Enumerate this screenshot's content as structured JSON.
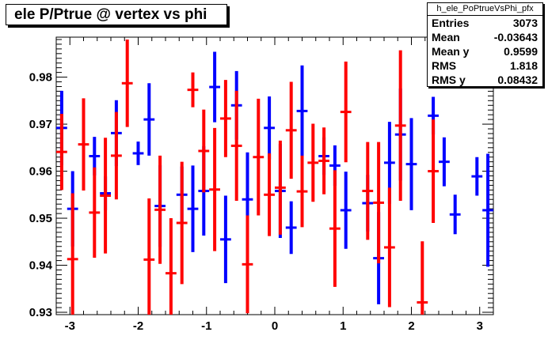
{
  "title": "ele P/Ptrue @ vertex vs phi",
  "stats": {
    "name": "h_ele_PoPtrueVsPhi_pfx",
    "rows": [
      {
        "label": "Entries",
        "value": "3073"
      },
      {
        "label": "Mean",
        "value": "-0.03643"
      },
      {
        "label": "Mean y",
        "value": "0.9599"
      },
      {
        "label": "RMS",
        "value": "1.818"
      },
      {
        "label": "RMS y",
        "value": "0.08432"
      }
    ]
  },
  "chart_data": {
    "type": "scatter",
    "title": "ele P/Ptrue @ vertex vs phi",
    "xlabel": "",
    "ylabel": "",
    "xlim": [
      -3.2,
      3.2
    ],
    "ylim": [
      0.9295,
      0.9885
    ],
    "x_ticks": [
      -3,
      -2,
      -1,
      0,
      1,
      2,
      3
    ],
    "y_ticks": [
      0.93,
      0.94,
      0.95,
      0.96,
      0.97,
      0.98
    ],
    "grid": false,
    "bin_half_width": 0.08,
    "series": [
      {
        "color": "#0000ff",
        "points": [
          {
            "x": -3.12,
            "y": 0.9692,
            "err": 0.0079
          },
          {
            "x": -2.96,
            "y": 0.952,
            "err": 0.008
          },
          {
            "x": -2.64,
            "y": 0.9632,
            "err": 0.0041
          },
          {
            "x": -2.48,
            "y": 0.9553,
            "err": 0.0036
          },
          {
            "x": -2.32,
            "y": 0.9681,
            "err": 0.007
          },
          {
            "x": -2.0,
            "y": 0.9638,
            "err": 0.0025
          },
          {
            "x": -1.84,
            "y": 0.971,
            "err": 0.0077
          },
          {
            "x": -1.68,
            "y": 0.9526,
            "err": 0.0087
          },
          {
            "x": -1.36,
            "y": 0.955,
            "err": 0.006
          },
          {
            "x": -1.2,
            "y": 0.952,
            "err": 0.0092
          },
          {
            "x": -1.04,
            "y": 0.9558,
            "err": 0.0095
          },
          {
            "x": -0.88,
            "y": 0.9779,
            "err": 0.0075
          },
          {
            "x": -0.72,
            "y": 0.9455,
            "err": 0.0093
          },
          {
            "x": -0.56,
            "y": 0.974,
            "err": 0.0073
          },
          {
            "x": -0.4,
            "y": 0.954,
            "err": 0.01
          },
          {
            "x": -0.08,
            "y": 0.9692,
            "err": 0.0067
          },
          {
            "x": 0.08,
            "y": 0.9558,
            "err": 0.01
          },
          {
            "x": 0.24,
            "y": 0.948,
            "err": 0.0056
          },
          {
            "x": 0.4,
            "y": 0.9728,
            "err": 0.0097
          },
          {
            "x": 0.72,
            "y": 0.9632,
            "err": 0.004
          },
          {
            "x": 0.88,
            "y": 0.9612,
            "err": 0.0043
          },
          {
            "x": 1.04,
            "y": 0.9517,
            "err": 0.0082
          },
          {
            "x": 1.36,
            "y": 0.9532,
            "err": 0.006
          },
          {
            "x": 1.52,
            "y": 0.9415,
            "err": 0.0098
          },
          {
            "x": 1.68,
            "y": 0.9618,
            "err": 0.0087
          },
          {
            "x": 1.84,
            "y": 0.9678,
            "err": 0.0098
          },
          {
            "x": 2.0,
            "y": 0.9615,
            "err": 0.0098
          },
          {
            "x": 2.32,
            "y": 0.9718,
            "err": 0.004
          },
          {
            "x": 2.48,
            "y": 0.962,
            "err": 0.0052
          },
          {
            "x": 2.64,
            "y": 0.9508,
            "err": 0.0042
          },
          {
            "x": 2.96,
            "y": 0.9589,
            "err": 0.0041
          },
          {
            "x": 3.12,
            "y": 0.9517,
            "err": 0.012
          }
        ]
      },
      {
        "color": "#ff0000",
        "points": [
          {
            "x": -3.12,
            "y": 0.9641,
            "err": 0.0081
          },
          {
            "x": -2.96,
            "y": 0.9413,
            "err": 0.014
          },
          {
            "x": -2.8,
            "y": 0.9657,
            "err": 0.0098
          },
          {
            "x": -2.64,
            "y": 0.9512,
            "err": 0.0096
          },
          {
            "x": -2.48,
            "y": 0.9548,
            "err": 0.0123
          },
          {
            "x": -2.32,
            "y": 0.9633,
            "err": 0.0093
          },
          {
            "x": -2.16,
            "y": 0.9787,
            "err": 0.0093
          },
          {
            "x": -1.84,
            "y": 0.9412,
            "err": 0.013
          },
          {
            "x": -1.68,
            "y": 0.9518,
            "err": 0.0115
          },
          {
            "x": -1.52,
            "y": 0.9383,
            "err": 0.0117
          },
          {
            "x": -1.36,
            "y": 0.949,
            "err": 0.013
          },
          {
            "x": -1.2,
            "y": 0.9773,
            "err": 0.0037
          },
          {
            "x": -1.04,
            "y": 0.9643,
            "err": 0.0088
          },
          {
            "x": -0.88,
            "y": 0.9561,
            "err": 0.0131
          },
          {
            "x": -0.72,
            "y": 0.9712,
            "err": 0.0082
          },
          {
            "x": -0.56,
            "y": 0.9654,
            "err": 0.0117
          },
          {
            "x": -0.4,
            "y": 0.9402,
            "err": 0.0104
          },
          {
            "x": -0.24,
            "y": 0.963,
            "err": 0.0124
          },
          {
            "x": -0.08,
            "y": 0.955,
            "err": 0.0088
          },
          {
            "x": 0.08,
            "y": 0.9565,
            "err": 0.01
          },
          {
            "x": 0.24,
            "y": 0.9687,
            "err": 0.0103
          },
          {
            "x": 0.4,
            "y": 0.9557,
            "err": 0.0076
          },
          {
            "x": 0.56,
            "y": 0.9618,
            "err": 0.0083
          },
          {
            "x": 0.72,
            "y": 0.9622,
            "err": 0.0071
          },
          {
            "x": 0.88,
            "y": 0.9478,
            "err": 0.0124
          },
          {
            "x": 1.04,
            "y": 0.9726,
            "err": 0.0107
          },
          {
            "x": 1.36,
            "y": 0.9558,
            "err": 0.0104
          },
          {
            "x": 1.52,
            "y": 0.9533,
            "err": 0.0129
          },
          {
            "x": 1.68,
            "y": 0.9438,
            "err": 0.0127
          },
          {
            "x": 1.84,
            "y": 0.9697,
            "err": 0.016
          },
          {
            "x": 2.16,
            "y": 0.9321,
            "err": 0.013
          },
          {
            "x": 2.32,
            "y": 0.96,
            "err": 0.011
          }
        ]
      }
    ]
  }
}
